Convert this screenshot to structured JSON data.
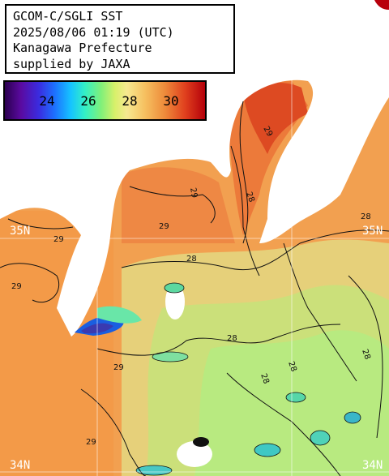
{
  "title": {
    "line1": "GCOM-C/SGLI SST",
    "line2": "2025/08/06 01:19 (UTC)",
    "line3": "Kanagawa Prefecture",
    "line4": "supplied by JAXA"
  },
  "colorbar": {
    "labels": [
      "24",
      "26",
      "28",
      "30"
    ],
    "range_min": 22,
    "range_max": 32
  },
  "lat_labels": {
    "n35_left": "35N",
    "n35_right": "35N",
    "n34_left": "34N",
    "n34_right": "34N"
  },
  "contour_labels": [
    "29",
    "29",
    "29",
    "29",
    "29",
    "29",
    "29",
    "28",
    "28",
    "28",
    "28",
    "28",
    "28",
    "28"
  ],
  "colors": {
    "sst_warm": "#f19a4c",
    "sst_mid": "#f3c978",
    "sst_cool": "#c8ef7c",
    "land": "#ffffff",
    "grid": "#ffffff"
  }
}
